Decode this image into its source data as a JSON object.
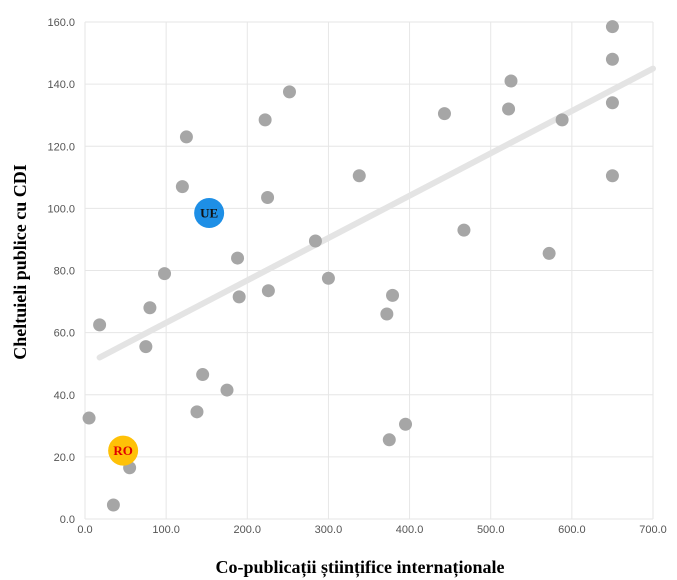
{
  "chart_data": {
    "type": "scatter",
    "xlabel": "Co-publicații științifice internaționale",
    "ylabel": "Cheltuieli publice cu CDI",
    "xlim": [
      0,
      700
    ],
    "ylim": [
      0,
      160
    ],
    "x_ticks": [
      "0.0",
      "100.0",
      "200.0",
      "300.0",
      "400.0",
      "500.0",
      "600.0",
      "700.0"
    ],
    "y_ticks": [
      "0.0",
      "20.0",
      "40.0",
      "60.0",
      "80.0",
      "100.0",
      "120.0",
      "140.0",
      "160.0"
    ],
    "grid": true,
    "points": [
      {
        "x": 5,
        "y": 32.5
      },
      {
        "x": 18,
        "y": 62.5
      },
      {
        "x": 35,
        "y": 4.5
      },
      {
        "x": 55,
        "y": 16.5
      },
      {
        "x": 75,
        "y": 55.5
      },
      {
        "x": 80,
        "y": 68
      },
      {
        "x": 98,
        "y": 79
      },
      {
        "x": 120,
        "y": 107
      },
      {
        "x": 125,
        "y": 123
      },
      {
        "x": 138,
        "y": 34.5
      },
      {
        "x": 145,
        "y": 46.5
      },
      {
        "x": 175,
        "y": 41.5
      },
      {
        "x": 188,
        "y": 84
      },
      {
        "x": 190,
        "y": 71.5
      },
      {
        "x": 222,
        "y": 128.5
      },
      {
        "x": 225,
        "y": 103.5
      },
      {
        "x": 226,
        "y": 73.5
      },
      {
        "x": 252,
        "y": 137.5
      },
      {
        "x": 284,
        "y": 89.5
      },
      {
        "x": 300,
        "y": 77.5
      },
      {
        "x": 338,
        "y": 110.5
      },
      {
        "x": 372,
        "y": 66
      },
      {
        "x": 375,
        "y": 25.5
      },
      {
        "x": 379,
        "y": 72
      },
      {
        "x": 395,
        "y": 30.5
      },
      {
        "x": 443,
        "y": 130.5
      },
      {
        "x": 467,
        "y": 93
      },
      {
        "x": 522,
        "y": 132
      },
      {
        "x": 525,
        "y": 141
      },
      {
        "x": 572,
        "y": 85.5
      },
      {
        "x": 588,
        "y": 128.5
      },
      {
        "x": 650,
        "y": 158.5
      },
      {
        "x": 650,
        "y": 148
      },
      {
        "x": 650,
        "y": 134
      },
      {
        "x": 650,
        "y": 110.5
      }
    ],
    "trendline": {
      "x": [
        18,
        700
      ],
      "y": [
        52,
        145
      ],
      "color": "#e4e4e4"
    },
    "highlights": [
      {
        "label": "UE",
        "x": 153,
        "y": 98.5,
        "color": "#1e8fe6",
        "text_color": "#111111"
      },
      {
        "label": "RO",
        "x": 47,
        "y": 22,
        "color": "#ffc107",
        "text_color": "#e00000"
      }
    ],
    "point_color": "#a6a6a6",
    "grid_color": "#e6e6e6"
  }
}
